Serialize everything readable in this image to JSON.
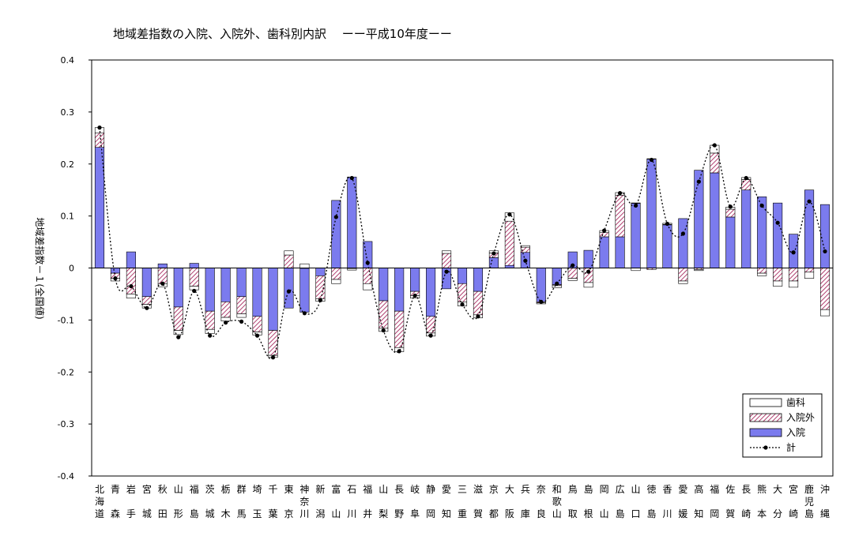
{
  "chart_data": {
    "type": "bar",
    "title": "地域差指数の入院、入院外、歯科別内訳　 ーー平成10年度ーー",
    "ylabel": "地域差指数－１(全国値)",
    "ylim": [
      -0.4,
      0.4
    ],
    "yticks": [
      "0.4",
      "0.3",
      "0.2",
      "0.1",
      "0",
      "-0.1",
      "-0.2",
      "-0.3",
      "-0.4"
    ],
    "ytick_values": [
      0.4,
      0.3,
      0.2,
      0.1,
      0,
      -0.1,
      -0.2,
      -0.3,
      -0.4
    ],
    "categories": [
      "北海道",
      "青森",
      "岩手",
      "宮城",
      "秋田",
      "山形",
      "福島",
      "茨城",
      "栃木",
      "群馬",
      "埼玉",
      "千葉",
      "東京",
      "神奈川",
      "新潟",
      "富山",
      "石川",
      "福井",
      "山梨",
      "長野",
      "岐阜",
      "静岡",
      "愛知",
      "三重",
      "滋賀",
      "京都",
      "大阪",
      "兵庫",
      "奈良",
      "和歌山",
      "鳥取",
      "島根",
      "岡山",
      "広島",
      "山口",
      "徳島",
      "香川",
      "愛媛",
      "高知",
      "福岡",
      "佐賀",
      "長崎",
      "熊本",
      "大分",
      "宮崎",
      "鹿児島",
      "沖縄"
    ],
    "series": [
      {
        "name": "入院",
        "color": "#7b7bee",
        "pattern": "solid",
        "values": [
          0.232,
          -0.01,
          0.031,
          -0.055,
          0.008,
          -0.075,
          0.009,
          -0.083,
          -0.065,
          -0.055,
          -0.093,
          -0.12,
          -0.077,
          -0.085,
          -0.015,
          0.13,
          0.175,
          0.051,
          -0.063,
          -0.083,
          -0.045,
          -0.093,
          -0.04,
          -0.03,
          -0.045,
          0.02,
          0.005,
          0.03,
          -0.065,
          -0.032,
          0.031,
          0.034,
          0.06,
          0.06,
          0.125,
          0.21,
          0.083,
          0.095,
          0.188,
          0.183,
          0.098,
          0.15,
          0.137,
          0.125,
          0.065,
          0.15,
          0.122
        ]
      },
      {
        "name": "入院外",
        "color": "#c06080",
        "pattern": "hatch",
        "values": [
          0.028,
          -0.01,
          -0.05,
          -0.015,
          -0.03,
          -0.045,
          -0.035,
          -0.035,
          -0.03,
          -0.033,
          -0.03,
          -0.048,
          0.025,
          0,
          -0.044,
          -0.022,
          -0.001,
          -0.03,
          -0.053,
          -0.07,
          -0.008,
          -0.032,
          0.028,
          -0.035,
          -0.045,
          0.009,
          0.085,
          0.01,
          -0.002,
          -0.002,
          -0.02,
          -0.028,
          0.008,
          0.08,
          0,
          -0.003,
          0.001,
          -0.025,
          -0.003,
          0.038,
          0.015,
          0.02,
          -0.01,
          -0.025,
          -0.025,
          -0.008,
          -0.08
        ]
      },
      {
        "name": "歯科",
        "color": "#ffffff",
        "pattern": "outline",
        "values": [
          0.01,
          -0.005,
          -0.008,
          -0.007,
          -0.006,
          -0.008,
          -0.007,
          -0.008,
          -0.007,
          -0.007,
          -0.006,
          -0.004,
          0.008,
          0.008,
          -0.005,
          -0.008,
          -0.003,
          -0.012,
          -0.006,
          -0.008,
          -0.005,
          -0.006,
          0.005,
          -0.008,
          -0.006,
          0.004,
          0.016,
          0.003,
          -0.002,
          -0.004,
          -0.004,
          -0.009,
          0.004,
          0.005,
          -0.005,
          0,
          0.002,
          -0.005,
          -0.002,
          0.015,
          0.004,
          0.004,
          -0.005,
          -0.01,
          -0.012,
          -0.012,
          -0.012
        ]
      },
      {
        "name": "計",
        "color": "#000000",
        "pattern": "dotted-line",
        "values": [
          0.27,
          -0.02,
          -0.035,
          -0.077,
          -0.03,
          -0.133,
          -0.044,
          -0.13,
          -0.105,
          -0.103,
          -0.13,
          -0.172,
          -0.045,
          -0.087,
          -0.062,
          0.098,
          0.173,
          0.01,
          -0.12,
          -0.16,
          -0.053,
          -0.13,
          -0.007,
          -0.07,
          -0.093,
          0.028,
          0.103,
          0.014,
          -0.065,
          -0.03,
          0.005,
          -0.007,
          0.072,
          0.144,
          0.12,
          0.208,
          0.085,
          0.066,
          0.166,
          0.236,
          0.118,
          0.173,
          0.12,
          0.087,
          0.03,
          0.128,
          0.032
        ]
      }
    ],
    "legend": {
      "position": "bottom-right",
      "entries": [
        "歯科",
        "入院外",
        "入院",
        "計"
      ]
    },
    "grid": false
  }
}
